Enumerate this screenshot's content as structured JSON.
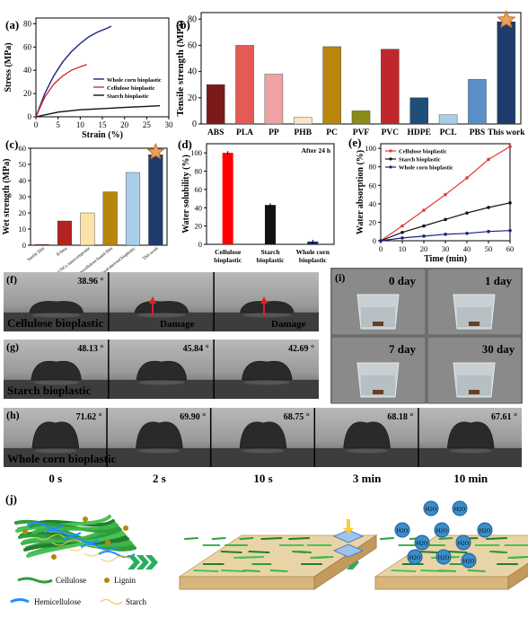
{
  "panels": {
    "a": {
      "letter": "(a)",
      "chart_data": {
        "type": "line",
        "xlabel": "Strain (%)",
        "ylabel": "Stress (MPa)",
        "xlim": [
          0,
          30
        ],
        "ylim": [
          0,
          85
        ],
        "xticks": [
          "0",
          "5",
          "10",
          "15",
          "20",
          "25",
          "30"
        ],
        "yticks": [
          "0",
          "20",
          "40",
          "60",
          "80"
        ],
        "legend_position": "right",
        "series": [
          {
            "name": "Whole corn bioplastic",
            "color": "#1a237e",
            "x": [
              0,
              2,
              4,
              6,
              8,
              10,
              12,
              14,
              16,
              17
            ],
            "y": [
              0,
              20,
              35,
              47,
              56,
              63,
              69,
              73,
              76,
              78
            ]
          },
          {
            "name": "Cellulose bioplastic",
            "color": "#d32f2f",
            "x": [
              0,
              2,
              4,
              6,
              8,
              10,
              11.5
            ],
            "y": [
              0,
              17,
              28,
              35,
              40,
              43,
              45
            ]
          },
          {
            "name": "Starch bioplastic",
            "color": "#111111",
            "x": [
              0,
              5,
              10,
              15,
              20,
              25,
              28
            ],
            "y": [
              0,
              4,
              6,
              7,
              8,
              9,
              9.5
            ]
          }
        ]
      }
    },
    "b": {
      "letter": "(b)",
      "chart_data": {
        "type": "bar",
        "ylabel": "Tensile strength (MPa)",
        "ylim": [
          0,
          85
        ],
        "yticks": [
          "0",
          "20",
          "40",
          "60",
          "80"
        ],
        "categories": [
          "ABS",
          "PLA",
          "PP",
          "PHB",
          "PC",
          "PVF",
          "PVC",
          "HDPE",
          "PCL",
          "PBS",
          "This work"
        ],
        "values": [
          30,
          60,
          38,
          5,
          59,
          10,
          57,
          20,
          7,
          34,
          78
        ],
        "colors": [
          "#7b1a1a",
          "#e35b52",
          "#eea2a6",
          "#f7e7c6",
          "#b8860b",
          "#8b8b1a",
          "#c0272d",
          "#1f4e79",
          "#a9cfe8",
          "#5a8fc9",
          "#1e3b6e"
        ]
      }
    },
    "c": {
      "letter": "(c)",
      "chart_data": {
        "type": "bar",
        "ylabel": "Wet strength (MPa)",
        "ylim": [
          0,
          60
        ],
        "yticks": [
          "0",
          "10",
          "20",
          "30",
          "40",
          "50",
          "60"
        ],
        "categories": [
          "Sterile film",
          "B-beta",
          "CNCs nanocomposite",
          "Nanocellulose-based film",
          "Wood-derived bioplastic",
          "This work"
        ],
        "values": [
          0.5,
          15,
          20,
          33,
          45,
          56
        ],
        "colors": [
          "#7b1a1a",
          "#b22222",
          "#fbe3a8",
          "#b8860b",
          "#a9cfe8",
          "#1e3b6e"
        ]
      }
    },
    "d": {
      "letter": "(d)",
      "chart_data": {
        "type": "bar",
        "title": "After 24 h",
        "ylabel": "Water solubility (%)",
        "ylim": [
          0,
          110
        ],
        "yticks": [
          "0",
          "20",
          "40",
          "60",
          "80",
          "100"
        ],
        "categories": [
          "Cellulose bioplastic",
          "Starch bioplastic",
          "Whole corn bioplastic"
        ],
        "values": [
          100,
          43,
          3
        ],
        "colors": [
          "#ff0000",
          "#111111",
          "#1a237e"
        ]
      }
    },
    "e": {
      "letter": "(e)",
      "chart_data": {
        "type": "line",
        "xlabel": "Time (min)",
        "ylabel": "Water absorption (%)",
        "xlim": [
          0,
          60
        ],
        "ylim": [
          0,
          105
        ],
        "xticks": [
          "0",
          "10",
          "20",
          "30",
          "40",
          "50",
          "60"
        ],
        "yticks": [
          "0",
          "20",
          "40",
          "60",
          "80",
          "100"
        ],
        "legend_position": "top-left",
        "series": [
          {
            "name": "Cellulose bioplastic",
            "color": "#e53935",
            "x": [
              0,
              10,
              20,
              30,
              40,
              50,
              60
            ],
            "y": [
              0,
              16,
              33,
              50,
              68,
              88,
              102
            ]
          },
          {
            "name": "Starch bioplastic",
            "color": "#111111",
            "x": [
              0,
              10,
              20,
              30,
              40,
              50,
              60
            ],
            "y": [
              0,
              9,
              16,
              23,
              30,
              36,
              41
            ]
          },
          {
            "name": "Whole corn bioplastic",
            "color": "#1a237e",
            "x": [
              0,
              10,
              20,
              30,
              40,
              50,
              60
            ],
            "y": [
              0,
              3,
              5,
              7,
              8,
              10,
              11
            ]
          }
        ]
      }
    },
    "f": {
      "letter": "(f)",
      "name": "Cellulose bioplastic",
      "angles": [
        "38.96 °",
        "",
        ""
      ],
      "damage": "Damage"
    },
    "g": {
      "letter": "(g)",
      "name": "Starch bioplastic",
      "angles": [
        "48.13 °",
        "45.84 °",
        "42.69 °"
      ]
    },
    "h": {
      "letter": "(h)",
      "name": "Whole corn bioplastic",
      "angles": [
        "71.62 °",
        "69.90 °",
        "68.75 °",
        "68.18 °",
        "67.61 °"
      ],
      "times": [
        "0 s",
        "2 s",
        "10 s",
        "3 min",
        "10 min"
      ]
    },
    "i": {
      "letter": "(i)",
      "days": [
        "0 day",
        "1 day",
        "7 day",
        "30 day"
      ]
    },
    "j": {
      "letter": "(j)",
      "legend": {
        "cellulose": "Cellulose",
        "lignin": "Lignin",
        "hemicellulose": "Hemicellulose",
        "starch": "Starch"
      },
      "molecule": "H2O"
    }
  },
  "colors": {
    "photo_bg": "#6f6f6f",
    "arrow_green": "#27ae60",
    "droplet_blue": "#3a8ec9"
  }
}
